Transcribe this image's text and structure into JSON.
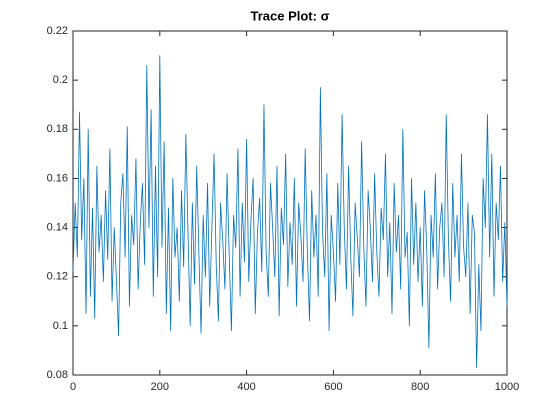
{
  "chart_data": {
    "type": "line",
    "title": "Trace Plot: σ",
    "color": "#0072bd",
    "x": [
      0,
      5,
      10,
      15,
      20,
      25,
      30,
      35,
      40,
      45,
      50,
      55,
      60,
      65,
      70,
      75,
      80,
      85,
      90,
      95,
      100,
      105,
      110,
      115,
      120,
      125,
      130,
      135,
      140,
      145,
      150,
      155,
      160,
      165,
      170,
      175,
      180,
      185,
      190,
      195,
      200,
      205,
      210,
      215,
      220,
      225,
      230,
      235,
      240,
      245,
      250,
      255,
      260,
      265,
      270,
      275,
      280,
      285,
      290,
      295,
      300,
      305,
      310,
      315,
      320,
      325,
      330,
      335,
      340,
      345,
      350,
      355,
      360,
      365,
      370,
      375,
      380,
      385,
      390,
      395,
      400,
      405,
      410,
      415,
      420,
      425,
      430,
      435,
      440,
      445,
      450,
      455,
      460,
      465,
      470,
      475,
      480,
      485,
      490,
      495,
      500,
      505,
      510,
      515,
      520,
      525,
      530,
      535,
      540,
      545,
      550,
      555,
      560,
      565,
      570,
      575,
      580,
      585,
      590,
      595,
      600,
      605,
      610,
      615,
      620,
      625,
      630,
      635,
      640,
      645,
      650,
      655,
      660,
      665,
      670,
      675,
      680,
      685,
      690,
      695,
      700,
      705,
      710,
      715,
      720,
      725,
      730,
      735,
      740,
      745,
      750,
      755,
      760,
      765,
      770,
      775,
      780,
      785,
      790,
      795,
      800,
      805,
      810,
      815,
      820,
      825,
      830,
      835,
      840,
      845,
      850,
      855,
      860,
      865,
      870,
      875,
      880,
      885,
      890,
      895,
      900,
      905,
      910,
      915,
      920,
      925,
      930,
      935,
      940,
      945,
      950,
      955,
      960,
      965,
      970,
      975,
      980,
      985,
      990,
      995,
      1000
    ],
    "values": [
      0.122,
      0.15,
      0.128,
      0.187,
      0.135,
      0.16,
      0.105,
      0.18,
      0.112,
      0.148,
      0.103,
      0.165,
      0.13,
      0.145,
      0.118,
      0.155,
      0.127,
      0.172,
      0.11,
      0.14,
      0.119,
      0.096,
      0.15,
      0.162,
      0.128,
      0.181,
      0.108,
      0.145,
      0.133,
      0.168,
      0.115,
      0.142,
      0.158,
      0.125,
      0.206,
      0.14,
      0.188,
      0.112,
      0.165,
      0.12,
      0.21,
      0.132,
      0.175,
      0.105,
      0.148,
      0.098,
      0.16,
      0.128,
      0.14,
      0.11,
      0.155,
      0.124,
      0.178,
      0.138,
      0.1,
      0.15,
      0.117,
      0.165,
      0.13,
      0.097,
      0.145,
      0.12,
      0.158,
      0.108,
      0.14,
      0.17,
      0.125,
      0.102,
      0.15,
      0.135,
      0.115,
      0.162,
      0.128,
      0.098,
      0.145,
      0.132,
      0.172,
      0.112,
      0.15,
      0.126,
      0.176,
      0.118,
      0.143,
      0.16,
      0.105,
      0.138,
      0.152,
      0.122,
      0.19,
      0.13,
      0.112,
      0.158,
      0.14,
      0.12,
      0.165,
      0.104,
      0.148,
      0.133,
      0.17,
      0.116,
      0.142,
      0.125,
      0.16,
      0.108,
      0.15,
      0.137,
      0.118,
      0.172,
      0.13,
      0.102,
      0.155,
      0.128,
      0.145,
      0.112,
      0.197,
      0.138,
      0.12,
      0.162,
      0.098,
      0.145,
      0.13,
      0.11,
      0.158,
      0.125,
      0.186,
      0.14,
      0.115,
      0.165,
      0.128,
      0.104,
      0.15,
      0.136,
      0.12,
      0.175,
      0.132,
      0.108,
      0.155,
      0.14,
      0.118,
      0.162,
      0.13,
      0.112,
      0.148,
      0.135,
      0.17,
      0.12,
      0.142,
      0.105,
      0.158,
      0.13,
      0.145,
      0.115,
      0.18,
      0.128,
      0.138,
      0.1,
      0.16,
      0.125,
      0.15,
      0.118,
      0.14,
      0.108,
      0.155,
      0.132,
      0.091,
      0.145,
      0.128,
      0.162,
      0.115,
      0.14,
      0.15,
      0.12,
      0.186,
      0.135,
      0.11,
      0.158,
      0.128,
      0.145,
      0.118,
      0.17,
      0.132,
      0.12,
      0.15,
      0.105,
      0.145,
      0.138,
      0.083,
      0.125,
      0.098,
      0.16,
      0.14,
      0.186,
      0.128,
      0.17,
      0.112,
      0.15,
      0.135,
      0.165,
      0.118,
      0.142,
      0.108
    ],
    "xlim": [
      0,
      1000
    ],
    "xticks": [
      0,
      200,
      400,
      600,
      800,
      1000
    ],
    "ylim": [
      0.08,
      0.22
    ],
    "yticks": [
      0.08,
      0.1,
      0.12,
      0.14,
      0.16,
      0.18,
      0.2,
      0.22
    ]
  }
}
